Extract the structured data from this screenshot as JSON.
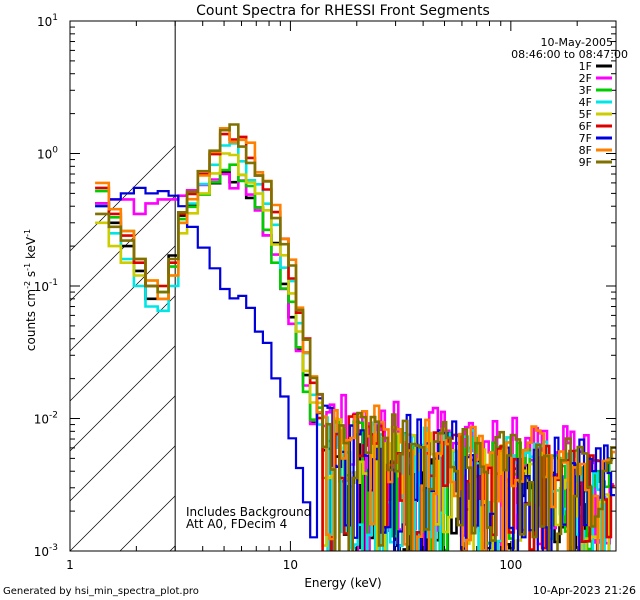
{
  "chart_data": {
    "type": "line",
    "title": "Count Spectra for RHESSI Front Segments",
    "xlabel": "Energy (keV)",
    "ylabel": "counts cm",
    "ylabel_sup1": "-2",
    "ylabel_mid": " s",
    "ylabel_sup2": "-1",
    "ylabel_end": " keV",
    "ylabel_sup3": "-1",
    "xscale": "log",
    "yscale": "log",
    "xlim": [
      1,
      300
    ],
    "ylim": [
      0.001,
      10
    ],
    "x_ticks": [
      {
        "value": 1,
        "label": "1"
      },
      {
        "value": 10,
        "label": "10"
      },
      {
        "value": 100,
        "label": "100"
      }
    ],
    "y_ticks": [
      {
        "value": 0.001,
        "base": "10",
        "exp": "-3"
      },
      {
        "value": 0.01,
        "base": "10",
        "exp": "-2"
      },
      {
        "value": 0.1,
        "base": "10",
        "exp": "-1"
      },
      {
        "value": 1,
        "base": "10",
        "exp": "0"
      },
      {
        "value": 10,
        "base": "10",
        "exp": "1"
      }
    ],
    "excluded_region": {
      "from": 1,
      "to": 3
    },
    "date": "10-May-2005",
    "time_range": "08:46:00 to 08:47:00",
    "annotation_lines": [
      "Includes Background",
      "Att A0, FDecim 4"
    ],
    "generated_by": "Generated by hsi_min_spectra_plot.pro",
    "generated_at": "10-Apr-2023 21:26",
    "series": [
      {
        "name": "1F",
        "color": "#000000",
        "low": [
          0.42,
          0.3,
          0.2,
          0.13,
          0.08,
          0.08,
          0.17,
          0.34
        ],
        "peak": 0.72,
        "floor": 0.5
      },
      {
        "name": "2F",
        "color": "#ff00ff",
        "low": [
          0.42,
          0.45,
          0.45,
          0.35,
          0.42,
          0.45,
          0.45,
          0.48
        ],
        "peak": 0.7,
        "floor": 1.1
      },
      {
        "name": "3F",
        "color": "#00cc00",
        "low": [
          0.52,
          0.33,
          0.26,
          0.16,
          0.1,
          0.09,
          0.14,
          0.32
        ],
        "peak": 0.75,
        "floor": 0.8
      },
      {
        "name": "4F",
        "color": "#00e5e5",
        "low": [
          0.4,
          0.25,
          0.16,
          0.1,
          0.07,
          0.065,
          0.1,
          0.3
        ],
        "peak": 1.15,
        "floor": 0.8
      },
      {
        "name": "5F",
        "color": "#cccc00",
        "low": [
          0.3,
          0.2,
          0.15,
          0.12,
          0.11,
          0.1,
          0.12,
          0.25
        ],
        "peak": 1.0,
        "floor": 0.7
      },
      {
        "name": "6F",
        "color": "#dd0000",
        "low": [
          0.55,
          0.35,
          0.24,
          0.15,
          0.1,
          0.1,
          0.15,
          0.35
        ],
        "peak": 1.4,
        "floor": 0.8
      },
      {
        "name": "7F",
        "color": "#0000dd",
        "low": [
          0.4,
          0.45,
          0.5,
          0.55,
          0.5,
          0.52,
          0.48,
          0.4
        ],
        "peak": 0.095,
        "floor": 0.9
      },
      {
        "name": "8F",
        "color": "#ff8000",
        "low": [
          0.6,
          0.38,
          0.26,
          0.16,
          0.11,
          0.08,
          0.12,
          0.3
        ],
        "peak": 1.55,
        "floor": 1.0
      },
      {
        "name": "9F",
        "color": "#807000",
        "low": [
          0.35,
          0.28,
          0.22,
          0.16,
          0.1,
          0.09,
          0.16,
          0.36
        ],
        "peak": 1.5,
        "floor": 0.9
      }
    ]
  }
}
